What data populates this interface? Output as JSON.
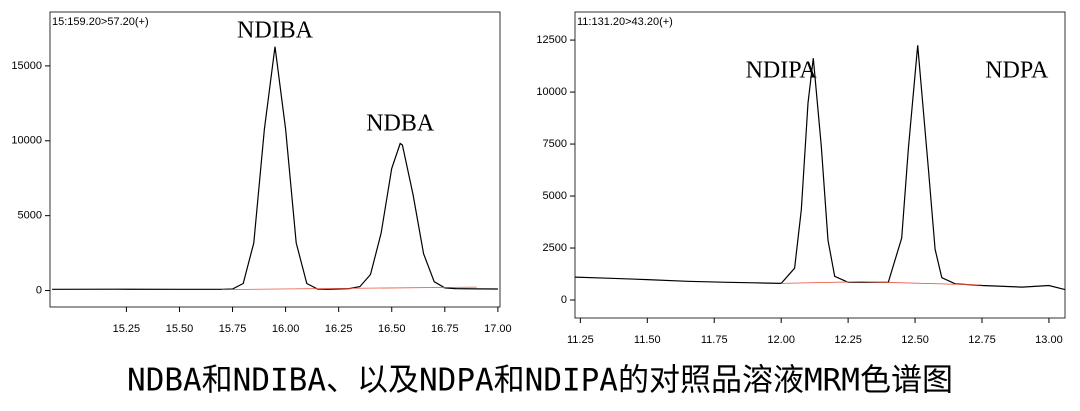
{
  "chart_data": [
    {
      "type": "line",
      "title": "15:159.20>57.20(+)",
      "annotations": [
        "NDIBA",
        "NDBA"
      ],
      "xlim": [
        14.89,
        17.01
      ],
      "ylim": [
        -1100,
        18600
      ],
      "xticks": [
        15.25,
        {
          "value": 15.5,
          "label": "15.50"
        },
        15.75,
        {
          "value": 16,
          "label": "16.00"
        },
        16.25,
        {
          "value": 16.5,
          "label": "16.50"
        },
        16.75,
        {
          "value": 17,
          "label": "17.00"
        }
      ],
      "yticks": [
        0,
        5000,
        10000,
        15000
      ],
      "series": [
        {
          "color": "#000000",
          "x": [
            14.9,
            15.2,
            15.5,
            15.7,
            15.75,
            15.8,
            15.85,
            15.9,
            15.95,
            16.0,
            16.05,
            16.1,
            16.15,
            16.2,
            16.3,
            16.35,
            16.4,
            16.45,
            16.5,
            16.54,
            16.55,
            16.6,
            16.65,
            16.7,
            16.75,
            16.8,
            16.9,
            17.0
          ],
          "values": [
            80,
            90,
            80,
            80,
            100,
            470,
            3180,
            10780,
            16280,
            10780,
            3180,
            470,
            100,
            80,
            130,
            260,
            1070,
            3820,
            8150,
            9820,
            9720,
            6420,
            2450,
            590,
            175,
            130,
            110,
            100
          ]
        },
        {
          "color": "#e8553f",
          "x": [
            15.7,
            16.9
          ],
          "values": [
            60,
            230
          ]
        }
      ]
    },
    {
      "type": "line",
      "title": "11:131.20>43.20(+)",
      "annotations": [
        "NDIPA",
        "NDPA"
      ],
      "xlim": [
        11.23,
        13.06
      ],
      "ylim": [
        -865,
        13850
      ],
      "xticks": [
        11.25,
        {
          "value": 11.5,
          "label": "11.50"
        },
        11.75,
        {
          "value": 12,
          "label": "12.00"
        },
        12.25,
        {
          "value": 12.5,
          "label": "12.50"
        },
        12.75,
        {
          "value": 13,
          "label": "13.00"
        }
      ],
      "yticks": [
        0,
        2500,
        5000,
        7500,
        10000,
        12500
      ],
      "series": [
        {
          "color": "#000000",
          "x": [
            11.23,
            11.35,
            11.5,
            11.65,
            11.8,
            11.9,
            12.0,
            12.05,
            12.075,
            12.1,
            12.12,
            12.15,
            12.175,
            12.2,
            12.25,
            12.35,
            12.4,
            12.45,
            12.475,
            12.51,
            12.55,
            12.575,
            12.6,
            12.65,
            12.75,
            12.9,
            13.0,
            13.06
          ],
          "values": [
            1100,
            1050,
            980,
            900,
            850,
            830,
            800,
            1530,
            4330,
            9470,
            11630,
            7390,
            2870,
            1140,
            850,
            850,
            850,
            2980,
            7300,
            12250,
            6300,
            2440,
            1075,
            780,
            700,
            620,
            700,
            500
          ]
        },
        {
          "color": "#e8553f",
          "x": [
            12.0,
            12.3,
            12.75
          ],
          "values": [
            800,
            880,
            720
          ]
        }
      ]
    }
  ],
  "caption": "NDBA和NDIBA、以及NDPA和NDIPA的对照品溶液MRM色谱图"
}
